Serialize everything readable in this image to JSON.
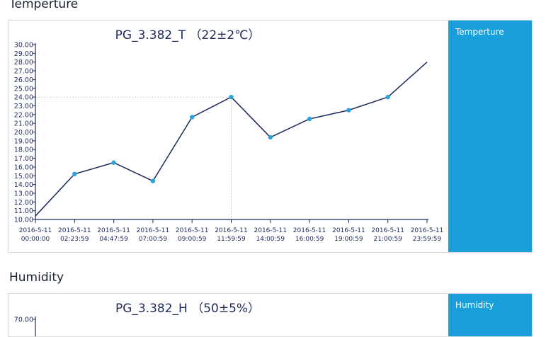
{
  "sections": {
    "temperature": {
      "heading": "Temperture",
      "legend_label": "Temperture"
    },
    "humidity": {
      "heading": "Humidity",
      "legend_label": "Humidity"
    }
  },
  "colors": {
    "line": "#1c2a5c",
    "marker": "#2aa3dc",
    "sidebar": "#199fda",
    "axis": "#1c2a5c",
    "crosshair": "#bbbbbb"
  },
  "chart_data": [
    {
      "type": "line",
      "title": "PG_3.382_T （22±2℃）",
      "xlabel": "",
      "ylabel": "",
      "ylim": [
        10,
        30
      ],
      "y_ticks": [
        "10.00",
        "11.00",
        "12.00",
        "13.00",
        "14.00",
        "15.00",
        "16.00",
        "17.00",
        "18.00",
        "19.00",
        "20.00",
        "21.00",
        "22.00",
        "23.00",
        "24.00",
        "25.00",
        "26.00",
        "27.00",
        "28.00",
        "29.00",
        "30.00"
      ],
      "categories": [
        [
          "2016-5-11",
          "00:00:00"
        ],
        [
          "2016-5-11",
          "02:23:59"
        ],
        [
          "2016-5-11",
          "04:47:59"
        ],
        [
          "2016-5-11",
          "07:00:59"
        ],
        [
          "2016-5-11",
          "09:00:59"
        ],
        [
          "2016-5-11",
          "11:59:59"
        ],
        [
          "2016-5-11",
          "14:00:59"
        ],
        [
          "2016-5-11",
          "16:00:59"
        ],
        [
          "2016-5-11",
          "19:00:59"
        ],
        [
          "2016-5-11",
          "21:00:59"
        ],
        [
          "2016-5-11",
          "23:59:59"
        ]
      ],
      "series": [
        {
          "values": [
            10.4,
            15.2,
            16.5,
            14.4,
            21.7,
            24.0,
            19.4,
            21.5,
            22.5,
            24.0,
            28.0
          ]
        }
      ],
      "highlighted_point": {
        "category_index": 5,
        "y": 24.0
      },
      "grid": false
    },
    {
      "type": "line",
      "title": "PG_3.382_H （50±5%）",
      "xlabel": "",
      "ylabel": "",
      "y_ticks_visible": [
        "70.00"
      ],
      "series": []
    }
  ]
}
